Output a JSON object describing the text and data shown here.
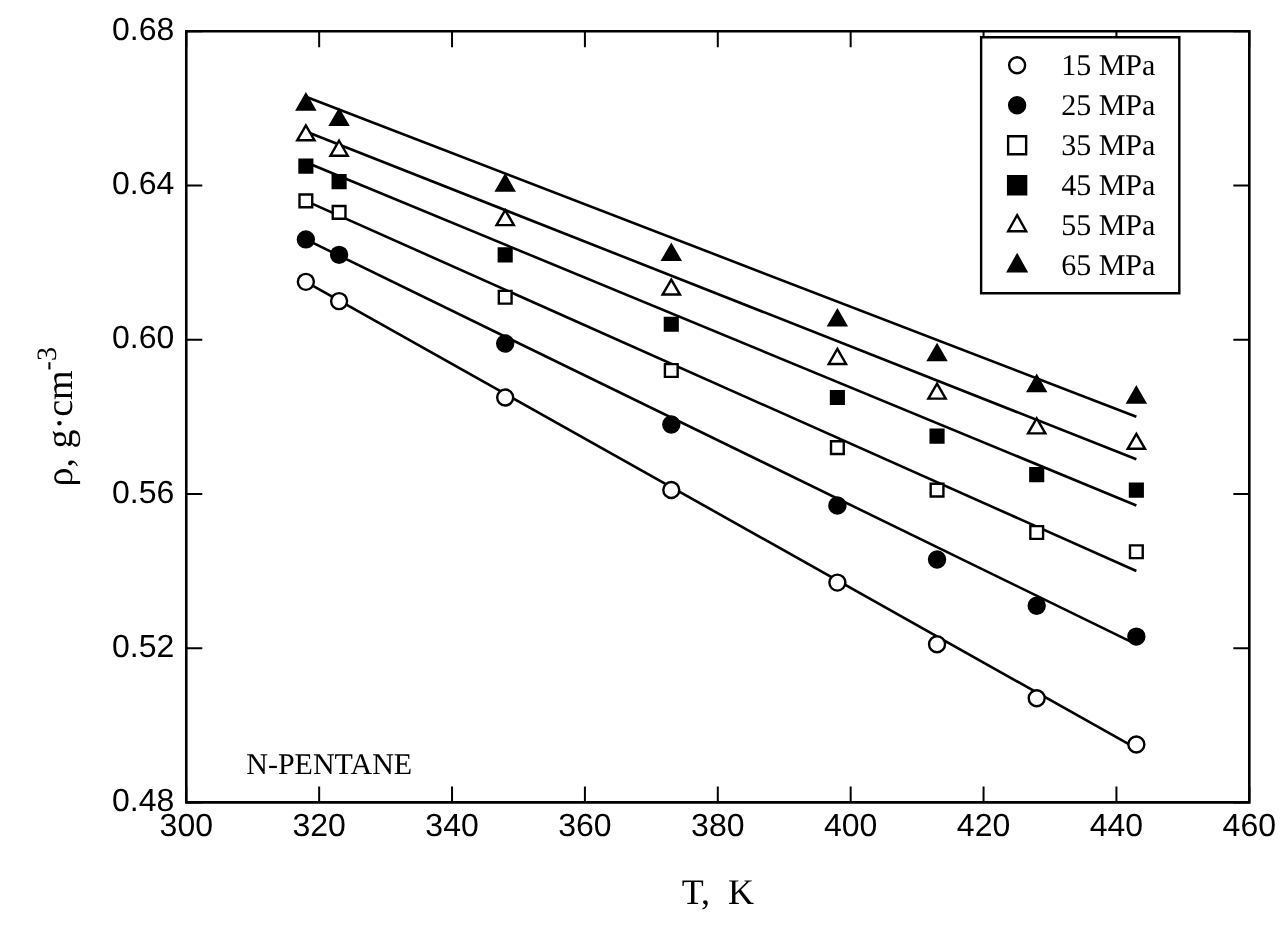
{
  "chart_data": {
    "type": "scatter",
    "xlabel": "T,  K",
    "ylabel": "ρ, g·cm$^{-3}$",
    "xlim": [
      300,
      460
    ],
    "xticks": [
      300,
      320,
      340,
      360,
      380,
      400,
      420,
      440,
      460
    ],
    "ylim": [
      0.48,
      0.68
    ],
    "yticks": [
      0.48,
      0.52,
      0.56,
      {
        "value": 0.6,
        "label": "0.60"
      },
      0.64,
      0.68
    ],
    "grid": false,
    "legend": "top right",
    "annotations": [
      "N-PENTANE"
    ],
    "x": [
      318,
      323,
      348,
      373,
      398,
      413,
      428,
      443
    ],
    "series": [
      {
        "name": "15 MPa",
        "color": "#ffffff",
        "marker": "circle",
        "values": [
          0.615,
          0.61,
          0.585,
          0.561,
          0.537,
          0.521,
          0.507,
          0.495
        ]
      },
      {
        "name": "25 MPa",
        "color": "#000000",
        "marker": "circle",
        "values": [
          0.626,
          0.622,
          0.599,
          0.578,
          0.557,
          0.543,
          0.531,
          0.523
        ]
      },
      {
        "name": "35 MPa",
        "color": "#ffffff",
        "marker": "square",
        "values": [
          0.636,
          0.633,
          0.611,
          0.592,
          0.572,
          0.561,
          0.55,
          0.545
        ]
      },
      {
        "name": "45 MPa",
        "color": "#000000",
        "marker": "square",
        "values": [
          0.645,
          0.641,
          0.622,
          0.604,
          0.585,
          0.575,
          0.565,
          0.561
        ]
      },
      {
        "name": "55 MPa",
        "color": "#ffffff",
        "marker": "triangle",
        "values": [
          0.653,
          0.649,
          0.631,
          0.613,
          0.595,
          0.586,
          0.577,
          0.573
        ]
      },
      {
        "name": "65 MPa",
        "color": "#000000",
        "marker": "triangle",
        "values": [
          0.661,
          0.657,
          0.64,
          0.622,
          0.605,
          0.596,
          0.588,
          0.585
        ]
      },
      {
        "type": "line",
        "color": "#000000",
        "marker": "none",
        "values": [
          0.615,
          null,
          null,
          null,
          null,
          null,
          null,
          0.494
        ]
      },
      {
        "type": "line",
        "color": "#000000",
        "marker": "none",
        "values": [
          0.626,
          null,
          null,
          null,
          null,
          null,
          null,
          0.521
        ]
      },
      {
        "type": "line",
        "color": "#000000",
        "marker": "none",
        "values": [
          0.636,
          null,
          null,
          null,
          null,
          null,
          null,
          0.54
        ]
      },
      {
        "type": "line",
        "color": "#000000",
        "marker": "none",
        "values": [
          0.646,
          null,
          null,
          null,
          null,
          null,
          null,
          0.557
        ]
      },
      {
        "type": "line",
        "color": "#000000",
        "marker": "none",
        "values": [
          0.654,
          null,
          null,
          null,
          null,
          null,
          null,
          0.569
        ]
      },
      {
        "type": "line",
        "color": "#000000",
        "marker": "none",
        "values": [
          0.663,
          null,
          null,
          null,
          null,
          null,
          null,
          0.58
        ]
      }
    ]
  }
}
